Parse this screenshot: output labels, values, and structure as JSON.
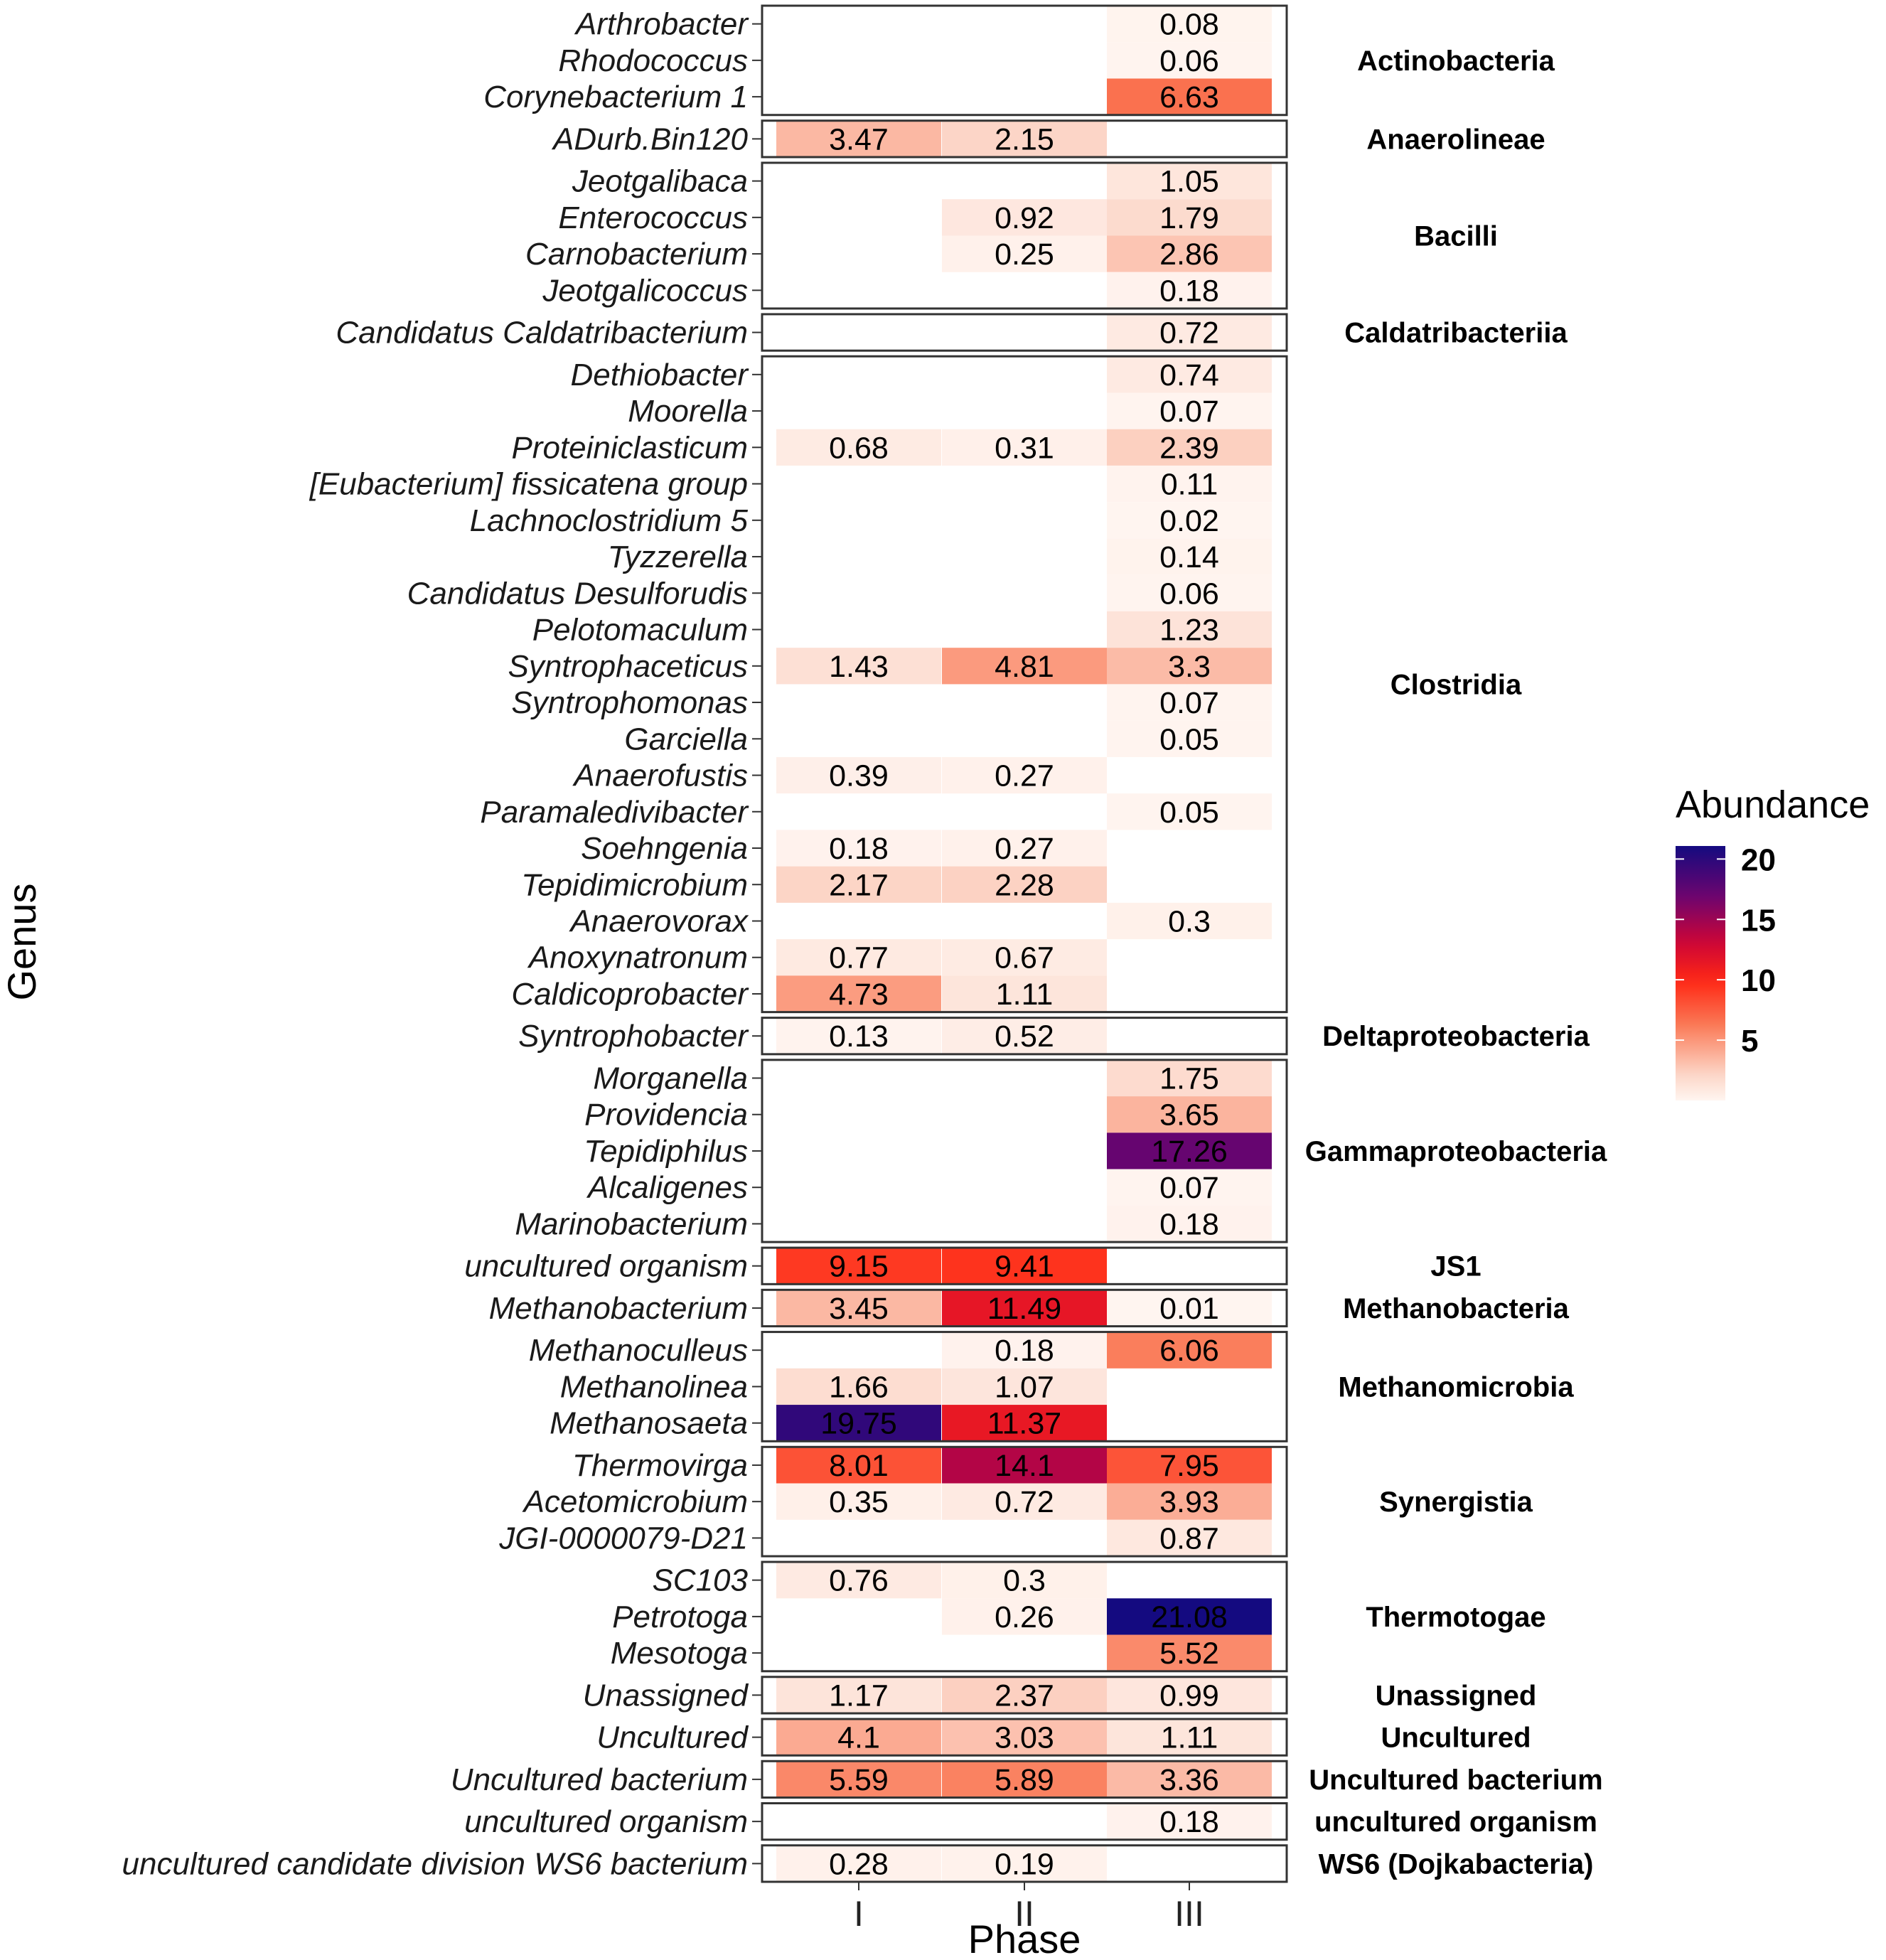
{
  "chart_data": {
    "type": "heatmap",
    "xlabel": "Phase",
    "ylabel": "Genus",
    "x_categories": [
      "I",
      "II",
      "III"
    ],
    "legend": {
      "title": "Abundance",
      "ticks": [
        5,
        10,
        15,
        20
      ],
      "range": [
        0,
        21.08
      ],
      "placement": "right",
      "colors": {
        "low": "#fff5f0",
        "mid": "#ff2a10",
        "high": "#1a0a80"
      }
    },
    "panels": [
      {
        "label": "Actinobacteria",
        "rows": [
          {
            "genus": "Arthrobacter",
            "values": [
              null,
              null,
              0.08
            ],
            "labels": [
              "",
              "",
              "0.08"
            ]
          },
          {
            "genus": "Rhodococcus",
            "values": [
              null,
              null,
              0.06
            ],
            "labels": [
              "",
              "",
              "0.06"
            ]
          },
          {
            "genus": "Corynebacterium 1",
            "values": [
              null,
              null,
              6.63
            ],
            "labels": [
              "",
              "",
              "6.63"
            ]
          }
        ]
      },
      {
        "label": "Anaerolineae",
        "rows": [
          {
            "genus": "ADurb.Bin120",
            "values": [
              3.47,
              2.15,
              null
            ],
            "labels": [
              "3.47",
              "2.15",
              ""
            ]
          }
        ]
      },
      {
        "label": "Bacilli",
        "rows": [
          {
            "genus": "Jeotgalibaca",
            "values": [
              null,
              null,
              1.05
            ],
            "labels": [
              "",
              "",
              "1.05"
            ]
          },
          {
            "genus": "Enterococcus",
            "values": [
              null,
              0.92,
              1.79
            ],
            "labels": [
              "",
              "0.92",
              "1.79"
            ]
          },
          {
            "genus": "Carnobacterium",
            "values": [
              null,
              0.25,
              2.86
            ],
            "labels": [
              "",
              "0.25",
              "2.86"
            ]
          },
          {
            "genus": "Jeotgalicoccus",
            "values": [
              null,
              null,
              0.18
            ],
            "labels": [
              "",
              "",
              "0.18"
            ]
          }
        ]
      },
      {
        "label": "Caldatribacteriia",
        "rows": [
          {
            "genus": "Candidatus Caldatribacterium",
            "values": [
              null,
              null,
              0.72
            ],
            "labels": [
              "",
              "",
              "0.72"
            ]
          }
        ]
      },
      {
        "label": "Clostridia",
        "rows": [
          {
            "genus": "Dethiobacter",
            "values": [
              null,
              null,
              0.74
            ],
            "labels": [
              "",
              "",
              "0.74"
            ]
          },
          {
            "genus": "Moorella",
            "values": [
              null,
              null,
              0.07
            ],
            "labels": [
              "",
              "",
              "0.07"
            ]
          },
          {
            "genus": "Proteiniclasticum",
            "values": [
              0.68,
              0.31,
              2.39
            ],
            "labels": [
              "0.68",
              "0.31",
              "2.39"
            ]
          },
          {
            "genus": "[Eubacterium] fissicatena group",
            "values": [
              null,
              null,
              0.11
            ],
            "labels": [
              "",
              "",
              "0.11"
            ]
          },
          {
            "genus": "Lachnoclostridium 5",
            "values": [
              null,
              null,
              0.02
            ],
            "labels": [
              "",
              "",
              "0.02"
            ]
          },
          {
            "genus": "Tyzzerella",
            "values": [
              null,
              null,
              0.14
            ],
            "labels": [
              "",
              "",
              "0.14"
            ]
          },
          {
            "genus": "Candidatus Desulforudis",
            "values": [
              null,
              null,
              0.06
            ],
            "labels": [
              "",
              "",
              "0.06"
            ]
          },
          {
            "genus": "Pelotomaculum",
            "values": [
              null,
              null,
              1.23
            ],
            "labels": [
              "",
              "",
              "1.23"
            ]
          },
          {
            "genus": "Syntrophaceticus",
            "values": [
              1.43,
              4.81,
              3.3
            ],
            "labels": [
              "1.43",
              "4.81",
              "3.3"
            ]
          },
          {
            "genus": "Syntrophomonas",
            "values": [
              null,
              null,
              0.07
            ],
            "labels": [
              "",
              "",
              "0.07"
            ]
          },
          {
            "genus": "Garciella",
            "values": [
              null,
              null,
              0.05
            ],
            "labels": [
              "",
              "",
              "0.05"
            ]
          },
          {
            "genus": "Anaerofustis",
            "values": [
              0.39,
              0.27,
              null
            ],
            "labels": [
              "0.39",
              "0.27",
              ""
            ]
          },
          {
            "genus": "Paramaledivibacter",
            "values": [
              null,
              null,
              0.05
            ],
            "labels": [
              "",
              "",
              "0.05"
            ]
          },
          {
            "genus": "Soehngenia",
            "values": [
              0.18,
              0.27,
              null
            ],
            "labels": [
              "0.18",
              "0.27",
              ""
            ]
          },
          {
            "genus": "Tepidimicrobium",
            "values": [
              2.17,
              2.28,
              null
            ],
            "labels": [
              "2.17",
              "2.28",
              ""
            ]
          },
          {
            "genus": "Anaerovorax",
            "values": [
              null,
              null,
              0.3
            ],
            "labels": [
              "",
              "",
              "0.3"
            ]
          },
          {
            "genus": "Anoxynatronum",
            "values": [
              0.77,
              0.67,
              null
            ],
            "labels": [
              "0.77",
              "0.67",
              ""
            ]
          },
          {
            "genus": "Caldicoprobacter",
            "values": [
              4.73,
              1.11,
              null
            ],
            "labels": [
              "4.73",
              "1.11",
              ""
            ]
          }
        ]
      },
      {
        "label": "Deltaproteobacteria",
        "rows": [
          {
            "genus": "Syntrophobacter",
            "values": [
              0.13,
              0.52,
              null
            ],
            "labels": [
              "0.13",
              "0.52",
              ""
            ]
          }
        ]
      },
      {
        "label": "Gammaproteobacteria",
        "rows": [
          {
            "genus": "Morganella",
            "values": [
              null,
              null,
              1.75
            ],
            "labels": [
              "",
              "",
              "1.75"
            ]
          },
          {
            "genus": "Providencia",
            "values": [
              null,
              null,
              3.65
            ],
            "labels": [
              "",
              "",
              "3.65"
            ]
          },
          {
            "genus": "Tepidiphilus",
            "values": [
              null,
              null,
              17.26
            ],
            "labels": [
              "",
              "",
              "17.26"
            ]
          },
          {
            "genus": "Alcaligenes",
            "values": [
              null,
              null,
              0.07
            ],
            "labels": [
              "",
              "",
              "0.07"
            ]
          },
          {
            "genus": "Marinobacterium",
            "values": [
              null,
              null,
              0.18
            ],
            "labels": [
              "",
              "",
              "0.18"
            ]
          }
        ]
      },
      {
        "label": "JS1",
        "rows": [
          {
            "genus": "uncultured organism",
            "values": [
              9.15,
              9.41,
              null
            ],
            "labels": [
              "9.15",
              "9.41",
              ""
            ]
          }
        ]
      },
      {
        "label": "Methanobacteria",
        "rows": [
          {
            "genus": "Methanobacterium",
            "values": [
              3.45,
              11.49,
              0.01
            ],
            "labels": [
              "3.45",
              "11.49",
              "0.01"
            ]
          }
        ]
      },
      {
        "label": "Methanomicrobia",
        "rows": [
          {
            "genus": "Methanoculleus",
            "values": [
              null,
              0.18,
              6.06
            ],
            "labels": [
              "",
              "0.18",
              "6.06"
            ]
          },
          {
            "genus": "Methanolinea",
            "values": [
              1.66,
              1.07,
              null
            ],
            "labels": [
              "1.66",
              "1.07",
              ""
            ]
          },
          {
            "genus": "Methanosaeta",
            "values": [
              19.75,
              11.37,
              null
            ],
            "labels": [
              "19.75",
              "11.37",
              ""
            ]
          }
        ]
      },
      {
        "label": "Synergistia",
        "rows": [
          {
            "genus": "Thermovirga",
            "values": [
              8.01,
              14.1,
              7.95
            ],
            "labels": [
              "8.01",
              "14.1",
              "7.95"
            ]
          },
          {
            "genus": "Acetomicrobium",
            "values": [
              0.35,
              0.72,
              3.93
            ],
            "labels": [
              "0.35",
              "0.72",
              "3.93"
            ]
          },
          {
            "genus": "JGI-0000079-D21",
            "values": [
              null,
              null,
              0.87
            ],
            "labels": [
              "",
              "",
              "0.87"
            ]
          }
        ]
      },
      {
        "label": "Thermotogae",
        "rows": [
          {
            "genus": "SC103",
            "values": [
              0.76,
              0.3,
              null
            ],
            "labels": [
              "0.76",
              "0.3",
              ""
            ]
          },
          {
            "genus": "Petrotoga",
            "values": [
              null,
              0.26,
              21.08
            ],
            "labels": [
              "",
              "0.26",
              "21.08"
            ]
          },
          {
            "genus": "Mesotoga",
            "values": [
              null,
              null,
              5.52
            ],
            "labels": [
              "",
              "",
              "5.52"
            ]
          }
        ]
      },
      {
        "label": "Unassigned",
        "rows": [
          {
            "genus": "Unassigned",
            "values": [
              1.17,
              2.37,
              0.99
            ],
            "labels": [
              "1.17",
              "2.37",
              "0.99"
            ]
          }
        ]
      },
      {
        "label": "Uncultured",
        "rows": [
          {
            "genus": "Uncultured",
            "values": [
              4.1,
              3.03,
              1.11
            ],
            "labels": [
              "4.1",
              "3.03",
              "1.11"
            ]
          }
        ]
      },
      {
        "label": "Uncultured bacterium",
        "rows": [
          {
            "genus": "Uncultured bacterium",
            "values": [
              5.59,
              5.89,
              3.36
            ],
            "labels": [
              "5.59",
              "5.89",
              "3.36"
            ]
          }
        ]
      },
      {
        "label": "uncultured organism",
        "rows": [
          {
            "genus": "uncultured organism",
            "values": [
              null,
              null,
              0.18
            ],
            "labels": [
              "",
              "",
              "0.18"
            ]
          }
        ]
      },
      {
        "label": "WS6 (Dojkabacteria)",
        "rows": [
          {
            "genus": "uncultured candidate division WS6 bacterium",
            "values": [
              0.28,
              0.19,
              null
            ],
            "labels": [
              "0.28",
              "0.19",
              ""
            ]
          }
        ]
      }
    ]
  }
}
